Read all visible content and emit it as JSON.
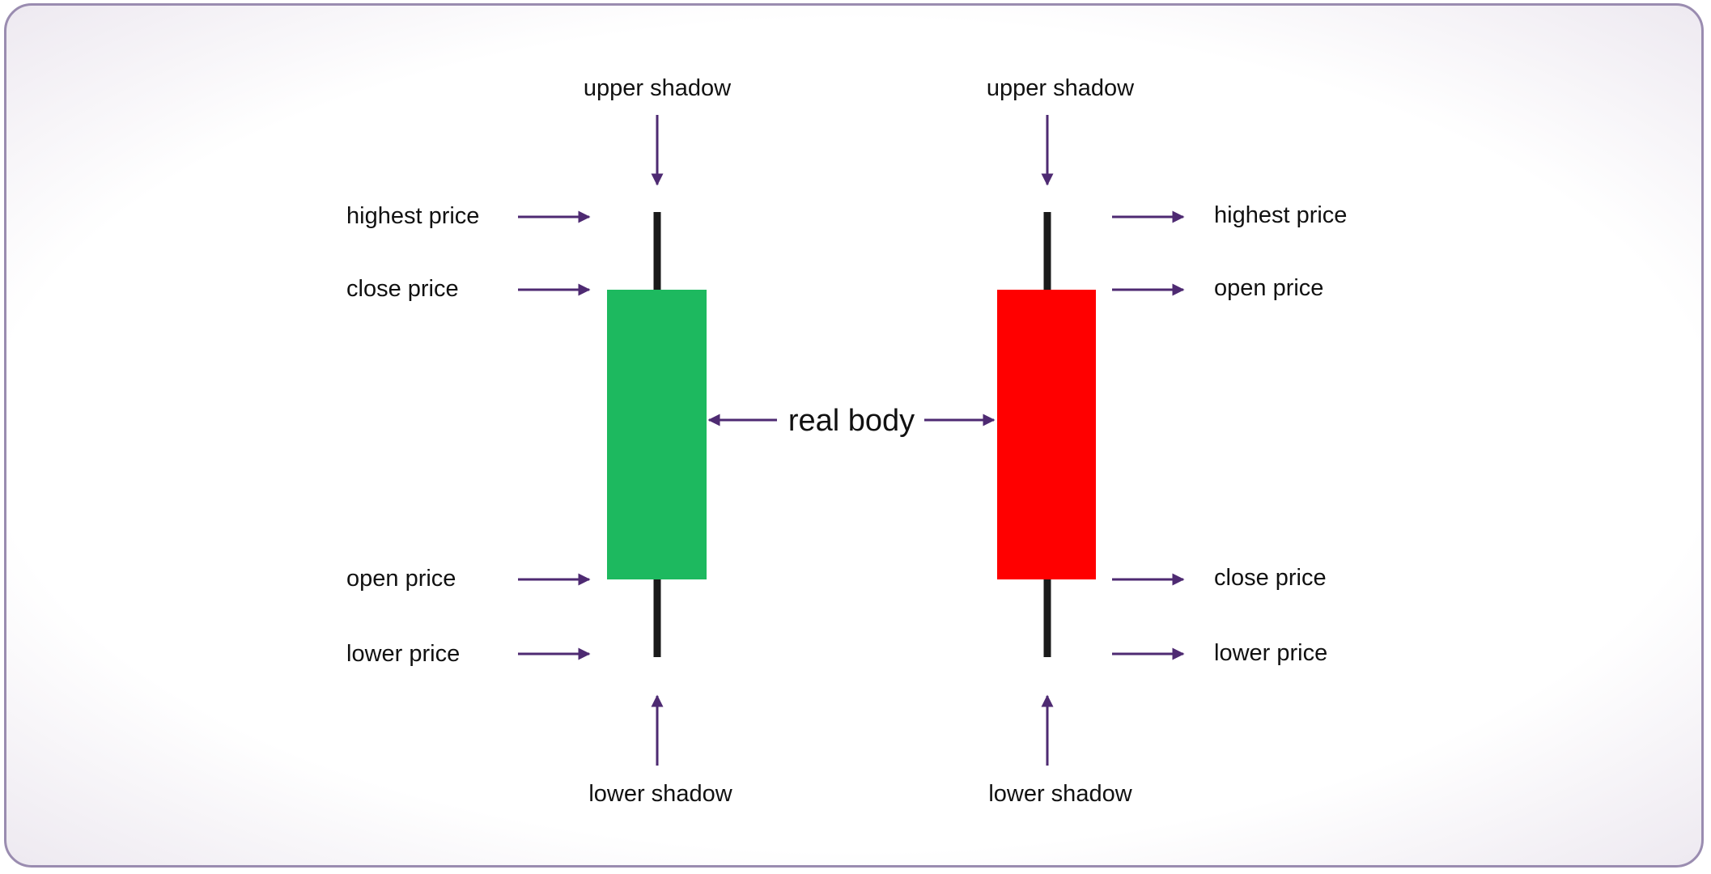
{
  "colors": {
    "arrow": "#4e2a72",
    "wick": "#1a1a1a",
    "bullish_body": "#1db95f",
    "bearish_body": "#ff0000",
    "frame_border": "#9a8cb0"
  },
  "bullish_candle": {
    "upper_shadow": "upper shadow",
    "highest_price": "highest price",
    "close_price": "close price",
    "open_price": "open price",
    "lower_price": "lower price",
    "lower_shadow": "lower shadow"
  },
  "bearish_candle": {
    "upper_shadow": "upper shadow",
    "highest_price": "highest price",
    "open_price": "open price",
    "close_price": "close price",
    "lower_price": "lower price",
    "lower_shadow": "lower shadow"
  },
  "real_body": "real body"
}
